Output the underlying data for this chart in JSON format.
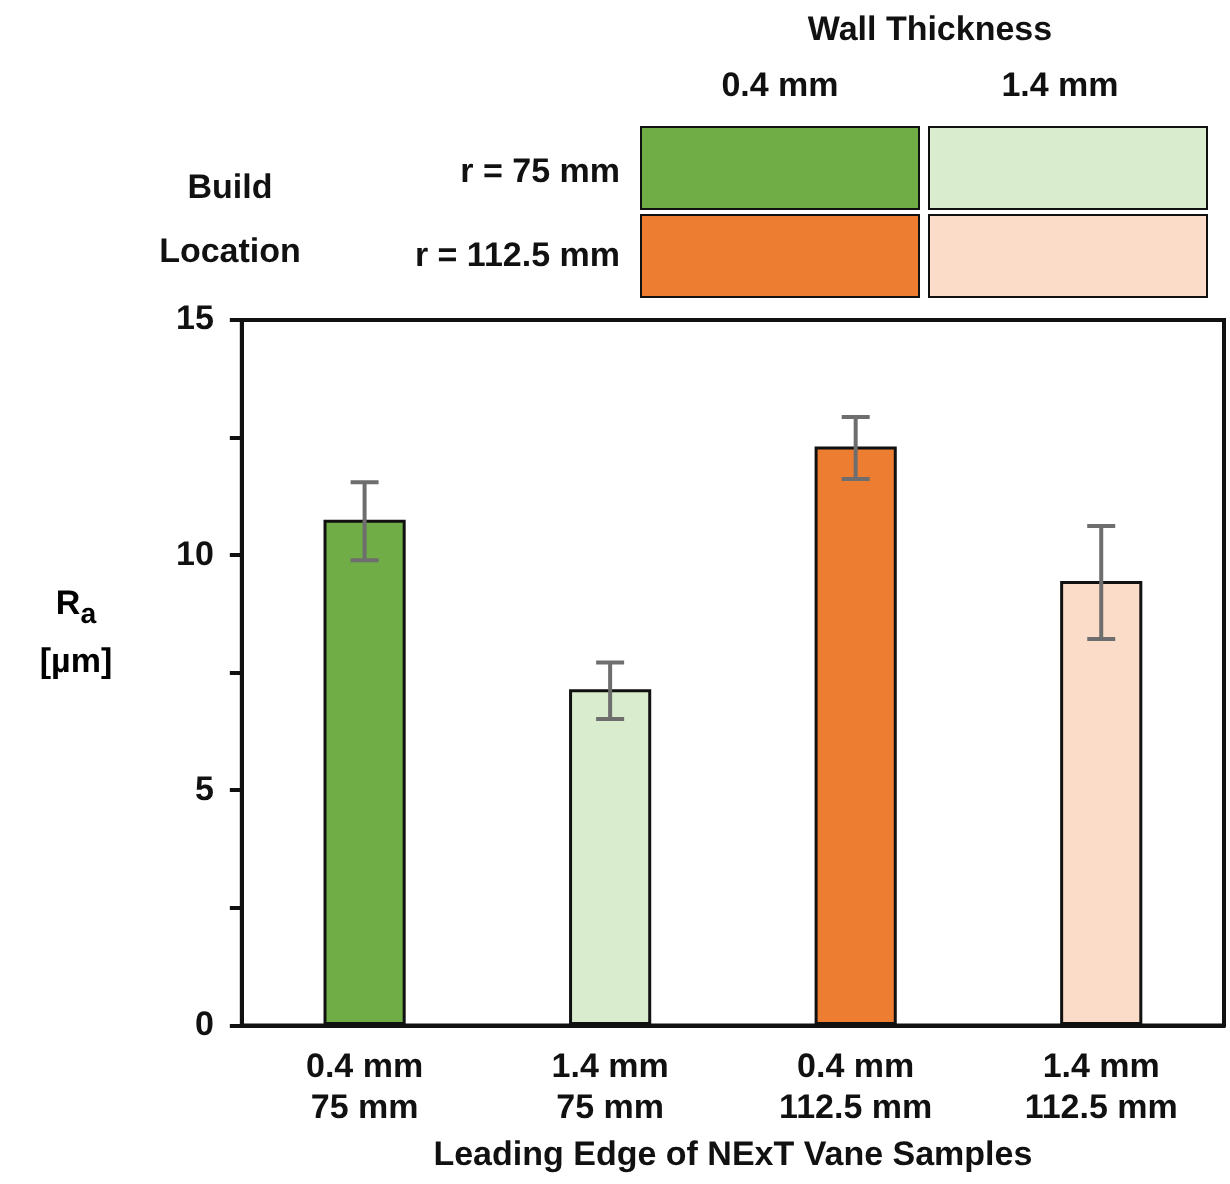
{
  "chart_data": {
    "type": "bar",
    "ylabel": "R$_{a}$\n[µm]",
    "xlabel": "Leading Edge of NExT Vane Samples",
    "categories": [
      "0.4 mm\n75 mm",
      "1.4 mm\n75 mm",
      "0.4 mm\n112.5 mm",
      "1.4 mm\n112.5 mm"
    ],
    "values": [
      10.72,
      7.12,
      12.28,
      9.42
    ],
    "errors": [
      0.83,
      0.6,
      0.66,
      1.2
    ],
    "colors": [
      "#70ad47",
      "#d9ecce",
      "#ed7d31",
      "#fbdcc8"
    ],
    "ylim": [
      0,
      15
    ],
    "yticks": [
      0,
      {
        "value": 2.5,
        "label": null
      },
      5,
      {
        "value": 7.5,
        "label": null
      },
      10,
      {
        "value": 12.5,
        "label": null
      },
      15
    ],
    "annotations": [
      "Wall Thickness",
      "0.4 mm",
      "1.4 mm",
      "Build Location",
      "r = 75 mm",
      "r = 112.5 mm"
    ]
  }
}
